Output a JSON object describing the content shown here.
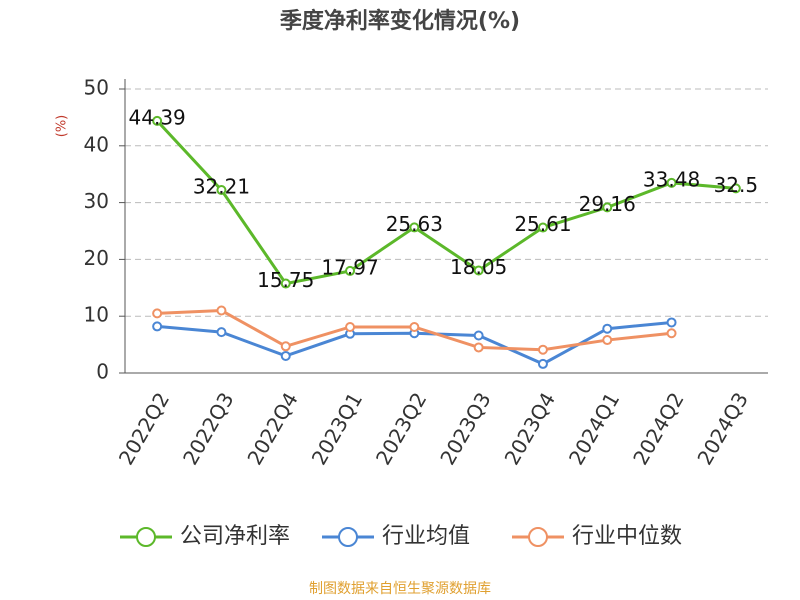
{
  "chart_data": {
    "type": "line",
    "title": "季度净利率变化情况(%)",
    "y_label": "(%)",
    "categories": [
      "2022Q2",
      "2022Q3",
      "2022Q4",
      "2023Q1",
      "2023Q2",
      "2023Q3",
      "2023Q4",
      "2024Q1",
      "2024Q2",
      "2024Q3"
    ],
    "series": [
      {
        "name": "公司净利率",
        "color": "#5cb82a",
        "values": [
          44.39,
          32.21,
          15.75,
          17.97,
          25.63,
          18.05,
          25.61,
          29.16,
          33.48,
          32.5
        ],
        "show_labels": true
      },
      {
        "name": "行业均值",
        "color": "#4a86d4",
        "values": [
          8.2,
          7.2,
          3.0,
          6.9,
          7.0,
          6.6,
          1.6,
          7.8,
          8.9,
          null
        ]
      },
      {
        "name": "行业中位数",
        "color": "#ef9163",
        "values": [
          10.5,
          11.0,
          4.7,
          8.1,
          8.1,
          4.5,
          4.1,
          5.8,
          7.0,
          null
        ]
      }
    ],
    "ylim": [
      0,
      50
    ],
    "yticks": [
      0,
      10,
      20,
      30,
      40,
      50
    ],
    "grid": true,
    "source": "制图数据来自恒生聚源数据库"
  }
}
